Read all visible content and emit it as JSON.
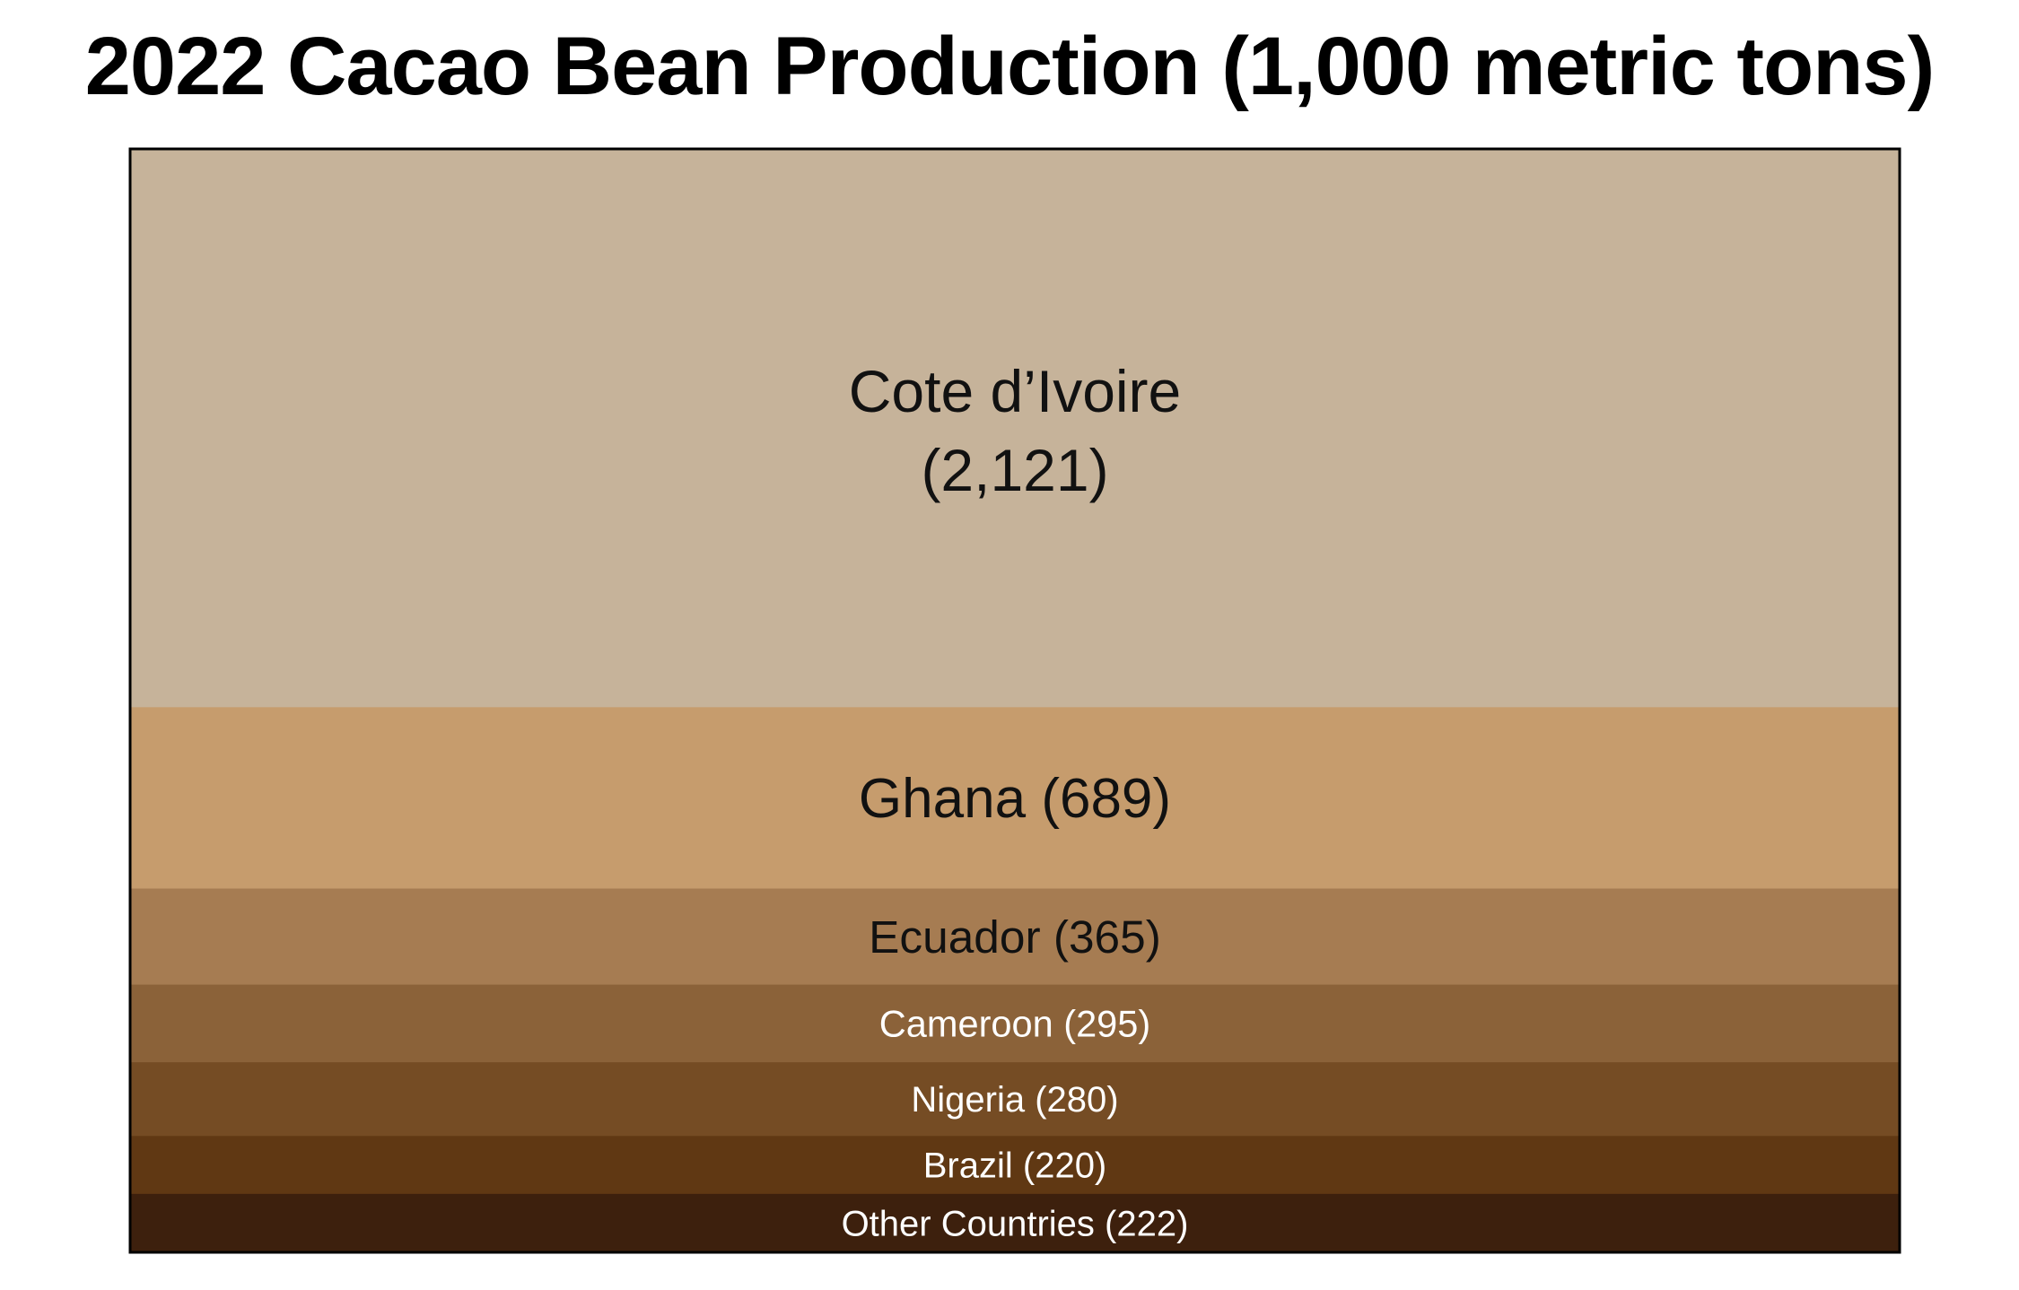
{
  "chart_data": {
    "type": "bar",
    "title": "2022 Cacao Bean Production (1,000 metric tons)",
    "orientation": "stacked-vertical",
    "segments": [
      {
        "label": "Cote d’Ivoire",
        "value": 2121,
        "value_text": "(2,121)",
        "color": "#c6b39a",
        "text_color": "#111111"
      },
      {
        "label": "Ghana",
        "value": 689,
        "value_text": "(689)",
        "color": "#c69c6d",
        "text_color": "#111111"
      },
      {
        "label": "Ecuador",
        "value": 365,
        "value_text": "(365)",
        "color": "#a67c52",
        "text_color": "#111111"
      },
      {
        "label": "Cameroon",
        "value": 295,
        "value_text": "(295)",
        "color": "#8b6239",
        "text_color": "#ffffff"
      },
      {
        "label": "Nigeria",
        "value": 280,
        "value_text": "(280)",
        "color": "#754c24",
        "text_color": "#ffffff"
      },
      {
        "label": "Brazil",
        "value": 220,
        "value_text": "(220)",
        "color": "#603813",
        "text_color": "#ffffff"
      },
      {
        "label": "Other Countries",
        "value": 222,
        "value_text": "(222)",
        "color": "#3d200d",
        "text_color": "#ffffff"
      }
    ]
  }
}
